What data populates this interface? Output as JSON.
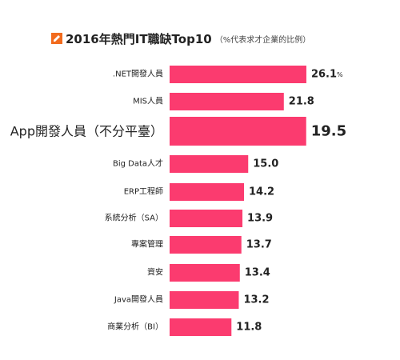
{
  "title": {
    "main": "2016年熱門IT職缺Top10",
    "sub": "（%代表求才企業的比例）"
  },
  "colors": {
    "bar": "#fb3b6f",
    "icon": "#f26b1d",
    "text": "#222222"
  },
  "chart_data": {
    "type": "bar",
    "orientation": "horizontal",
    "title": "2016年熱門IT職缺Top10",
    "subtitle": "（%代表求才企業的比例）",
    "unit": "%",
    "highlight_index": 2,
    "categories": [
      ".NET開發人員",
      "MIS人員",
      "App開發人員（不分平臺）",
      "Big Data人才",
      "ERP工程師",
      "系統分析（SA）",
      "專案管理",
      "資安",
      "Java開發人員",
      "商業分析（BI）"
    ],
    "values": [
      26.1,
      21.8,
      19.5,
      15.0,
      14.2,
      13.9,
      13.7,
      13.4,
      13.2,
      11.8
    ],
    "value_labels": [
      "26.1",
      "21.8",
      "19.5",
      "15.0",
      "14.2",
      "13.9",
      "13.7",
      "13.4",
      "13.2",
      "11.8"
    ]
  }
}
